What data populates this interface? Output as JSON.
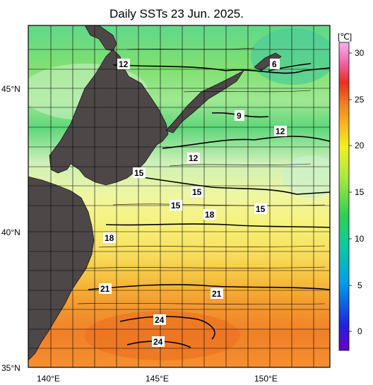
{
  "title": "Daily SSTs 23 Jun. 2025.",
  "unit_label": "[℃]",
  "lat_labels": [
    "45°N",
    "40°N",
    "35°N"
  ],
  "lon_labels": [
    "140°E",
    "145°E",
    "150°E"
  ],
  "colorbar_ticks": [
    "30",
    "25",
    "20",
    "15",
    "10",
    "5",
    "0"
  ],
  "isotherm_labels": [
    {
      "id": "iso-12-nw",
      "text": "12"
    },
    {
      "id": "iso-6",
      "text": "6"
    },
    {
      "id": "iso-9",
      "text": "9"
    },
    {
      "id": "iso-12-e",
      "text": "12"
    },
    {
      "id": "iso-12-c",
      "text": "12"
    },
    {
      "id": "iso-15-w",
      "text": "15"
    },
    {
      "id": "iso-15-c",
      "text": "15"
    },
    {
      "id": "iso-15-s",
      "text": "15"
    },
    {
      "id": "iso-15-e",
      "text": "15"
    },
    {
      "id": "iso-18-c",
      "text": "18"
    },
    {
      "id": "iso-18-w",
      "text": "18"
    },
    {
      "id": "iso-21-w",
      "text": "21"
    },
    {
      "id": "iso-21-c",
      "text": "21"
    },
    {
      "id": "iso-24-n",
      "text": "24"
    },
    {
      "id": "iso-24-s",
      "text": "24"
    }
  ],
  "colors": {
    "land": "#4d4748",
    "isotherm": "#000000",
    "frame": "#000000"
  }
}
